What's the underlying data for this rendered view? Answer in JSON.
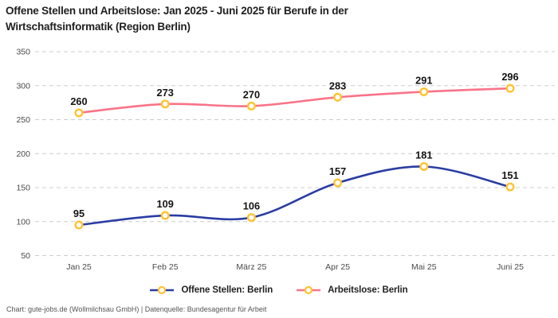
{
  "title": "Offene Stellen und Arbeitslose: Jan 2025 - Juni 2025 für Berufe in der Wirtschaftsinformatik (Region Berlin)",
  "footer": "Chart: gute-jobs.de (Wollmilchsau GmbH) | Datenquelle: Bundesagentur für Arbeit",
  "colors": {
    "offene_stellen": "#2A3DA3",
    "arbeitslose": "#F97388",
    "marker_ring": "#FFC231",
    "marker_fill": "#FFFFFF",
    "grid": "#CCCCCC",
    "axis_text": "#4A4A4A",
    "data_label_text": "#141414"
  },
  "legend": {
    "items": [
      {
        "label": "Offene Stellen: Berlin",
        "color": "#2A3DA3"
      },
      {
        "label": "Arbeitslose: Berlin",
        "color": "#F97388"
      }
    ]
  },
  "chart_data": {
    "type": "line",
    "title": "Offene Stellen und Arbeitslose: Jan 2025 - Juni 2025 für Berufe in der Wirtschaftsinformatik (Region Berlin)",
    "categories": [
      "Jan 25",
      "Feb 25",
      "März 25",
      "Apr 25",
      "Mai 25",
      "Juni 25"
    ],
    "series": [
      {
        "name": "Offene Stellen: Berlin",
        "color": "#2A3DA3",
        "values": [
          95,
          109,
          106,
          157,
          181,
          151
        ]
      },
      {
        "name": "Arbeitslose: Berlin",
        "color": "#F97388",
        "values": [
          260,
          273,
          270,
          283,
          291,
          296
        ]
      }
    ],
    "yticks": [
      50,
      100,
      150,
      200,
      250,
      300,
      350
    ],
    "ylim": [
      50,
      350
    ],
    "grid": true,
    "grid_style": "dashed",
    "marker": "circle-gold-ring",
    "legend_position": "bottom",
    "data_labels": true,
    "source_note": "Chart: gute-jobs.de (Wollmilchsau GmbH) | Datenquelle: Bundesagentur für Arbeit"
  }
}
